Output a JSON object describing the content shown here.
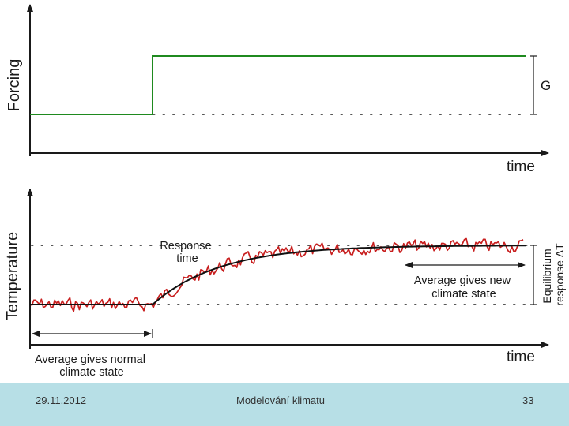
{
  "top_panel": {
    "y_label": "Forcing",
    "x_label": "time",
    "bracket_label": "G",
    "colors": {
      "forcing": "#1f8a1f",
      "axis": "#1a1a1a",
      "dots": "#555555"
    }
  },
  "bottom_panel": {
    "y_label": "Temperature",
    "x_label": "time",
    "response_label_line1": "Response",
    "response_label_line2": "time",
    "new_state_line1": "Average gives new",
    "new_state_line2": "climate state",
    "normal_state_line1": "Average gives normal",
    "normal_state_line2": "climate state",
    "bracket_label_line1": "Equilibrium",
    "bracket_label_line2": "response ΔT",
    "colors": {
      "noisy": "#c81e1e",
      "smooth": "#111111"
    }
  },
  "footer": {
    "date": "29.11.2012",
    "title": "Modelování klimatu",
    "page": "33",
    "color": "#b7dfe6"
  }
}
